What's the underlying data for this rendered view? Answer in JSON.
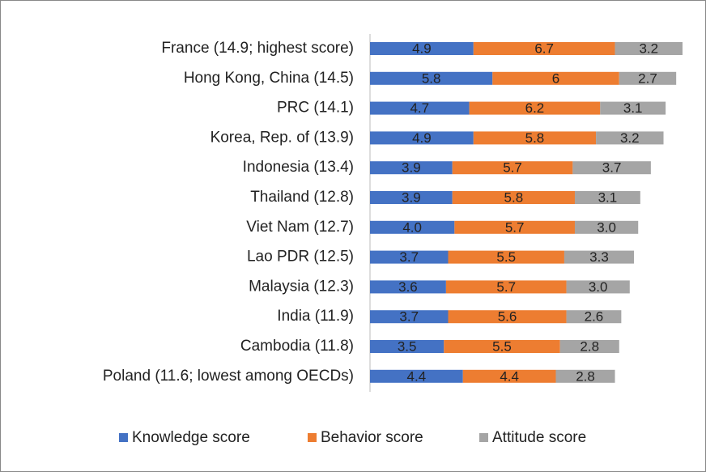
{
  "chart_data": {
    "type": "stacked-barh",
    "categories": [
      "France (14.9; highest score)",
      "Hong Kong, China (14.5)",
      "PRC (14.1)",
      "Korea, Rep. of (13.9)",
      "Indonesia (13.4)",
      "Thailand (12.8)",
      "Viet Nam (12.7)",
      "Lao PDR (12.5)",
      "Malaysia (12.3)",
      "India (11.9)",
      "Cambodia (11.8)",
      "Poland (11.6; lowest among OECDs)"
    ],
    "series": [
      {
        "name": "Knowledge score",
        "color": "#4472c4",
        "values": [
          4.9,
          5.8,
          4.7,
          4.9,
          3.9,
          3.9,
          4.0,
          3.7,
          3.6,
          3.7,
          3.5,
          4.4
        ],
        "value_labels": [
          "4.9",
          "5.8",
          "4.7",
          "4.9",
          "3.9",
          "3.9",
          "4.0",
          "3.7",
          "3.6",
          "3.7",
          "3.5",
          "4.4"
        ]
      },
      {
        "name": "Behavior score",
        "color": "#ed7d31",
        "values": [
          6.7,
          6,
          6.2,
          5.8,
          5.7,
          5.8,
          5.7,
          5.5,
          5.7,
          5.6,
          5.5,
          4.4
        ],
        "value_labels": [
          "6.7",
          "6",
          "6.2",
          "5.8",
          "5.7",
          "5.8",
          "5.7",
          "5.5",
          "5.7",
          "5.6",
          "5.5",
          "4.4"
        ]
      },
      {
        "name": "Attitude score",
        "color": "#a5a5a5",
        "values": [
          3.2,
          2.7,
          3.1,
          3.2,
          3.7,
          3.1,
          3.0,
          3.3,
          3.0,
          2.6,
          2.8,
          2.8
        ],
        "value_labels": [
          "3.2",
          "2.7",
          "3.1",
          "3.2",
          "3.7",
          "3.1",
          "3.0",
          "3.3",
          "3.0",
          "2.6",
          "2.8",
          "2.8"
        ]
      }
    ],
    "legend": "bottom"
  }
}
